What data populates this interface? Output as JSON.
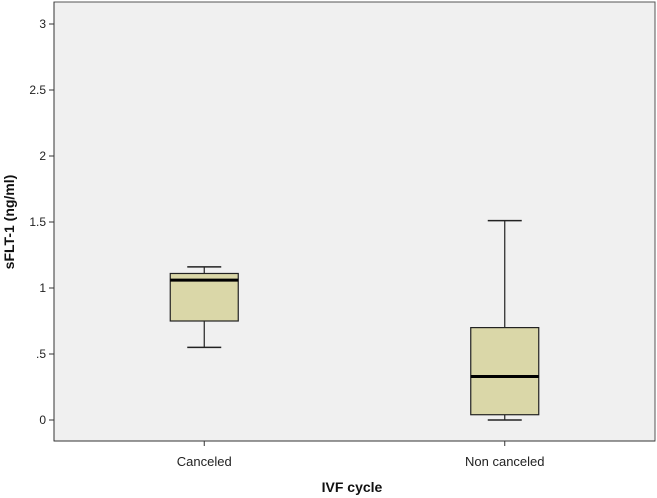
{
  "chart_data": {
    "type": "box",
    "title": "",
    "xlabel": "IVF cycle",
    "ylabel": "sFLT-1 (ng/ml)",
    "ylim": [
      0,
      3
    ],
    "yticks": [
      0,
      0.5,
      1,
      1.5,
      2,
      2.5,
      3
    ],
    "yticklabels": [
      "0",
      ".5",
      "1",
      "1.5",
      "2",
      "2.5",
      "3"
    ],
    "categories": [
      "Canceled",
      "Non canceled"
    ],
    "boxes": [
      {
        "category": "Canceled",
        "min": 0.55,
        "q1": 0.75,
        "median": 1.06,
        "q3": 1.11,
        "max": 1.16
      },
      {
        "category": "Non canceled",
        "min": 0.0,
        "q1": 0.04,
        "median": 0.33,
        "q3": 0.7,
        "max": 1.51
      }
    ],
    "grid": false,
    "legend": "none",
    "colors": {
      "plot_bg": "#f0f0f0",
      "box_fill": "#dad7a8",
      "stroke": "#222222"
    }
  }
}
